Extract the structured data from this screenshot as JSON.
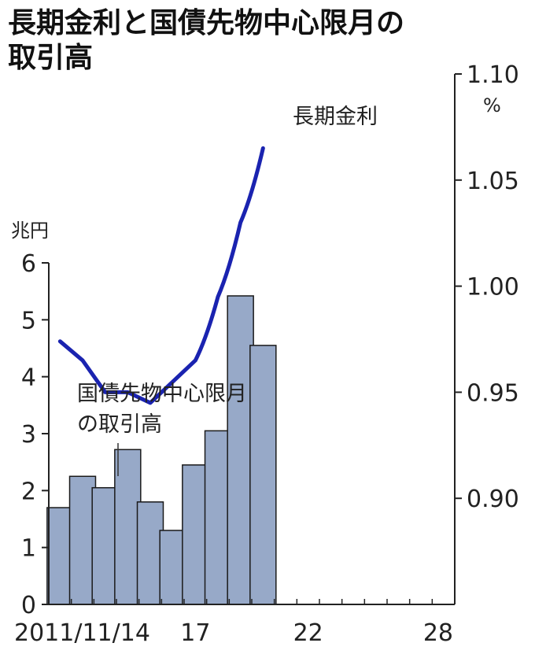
{
  "chart_data": {
    "type": "bar",
    "title_line1": "長期金利と国債先物中心限月の",
    "title_line2": "取引高",
    "categories": [
      "2011",
      "2012",
      "2013",
      "2014",
      "2015",
      "2016",
      "2017",
      "2018",
      "2019",
      "2020",
      "2021",
      "2022",
      "2023",
      "2024",
      "2025",
      "2026",
      "2027",
      "2028"
    ],
    "x_tick_labels": [
      {
        "category": "2011",
        "label": "2011/11/14"
      },
      {
        "category": "2017",
        "label": "17"
      },
      {
        "category": "2022",
        "label": "22"
      },
      {
        "category": "2028",
        "label": "28"
      }
    ],
    "series": [
      {
        "name": "国債先物中心限月の取引高",
        "axis": "left",
        "type": "bar",
        "color": "#97a9c8",
        "points": [
          {
            "x": "2011",
            "y": 1.7
          },
          {
            "x": "2012",
            "y": 2.25
          },
          {
            "x": "2013",
            "y": 2.05
          },
          {
            "x": "2014",
            "y": 2.72
          },
          {
            "x": "2015",
            "y": 1.8
          },
          {
            "x": "2016",
            "y": 1.3
          },
          {
            "x": "2017",
            "y": 2.45
          },
          {
            "x": "2018",
            "y": 3.05
          },
          {
            "x": "2019",
            "y": 5.42
          },
          {
            "x": "2020",
            "y": 4.55
          }
        ]
      },
      {
        "name": "長期金利",
        "axis": "right",
        "type": "line",
        "color": "#1a23b0",
        "points": [
          {
            "x": "2011",
            "y": 0.974
          },
          {
            "x": "2012",
            "y": 0.965
          },
          {
            "x": "2013",
            "y": 0.95
          },
          {
            "x": "2014",
            "y": 0.95
          },
          {
            "x": "2015",
            "y": 0.945
          },
          {
            "x": "2016",
            "y": 0.955
          },
          {
            "x": "2017",
            "y": 0.965
          },
          {
            "x": "2018",
            "y": 0.995
          },
          {
            "x": "2019",
            "y": 1.03
          },
          {
            "x": "2020",
            "y": 1.065
          }
        ]
      }
    ],
    "bar_annotation": [
      "国債先物中心限月",
      "の取引高"
    ],
    "line_annotation": "長期金利",
    "left_axis": {
      "unit": "兆円",
      "range": [
        0,
        6
      ],
      "ticks": [
        "0",
        "1",
        "2",
        "3",
        "4",
        "5",
        "6"
      ]
    },
    "right_axis": {
      "unit": "%",
      "range": [
        0.85,
        1.1
      ],
      "ticks": [
        "0.90",
        "0.95",
        "1.00",
        "1.05",
        "1.10"
      ]
    },
    "grid": false,
    "legend": "none"
  }
}
